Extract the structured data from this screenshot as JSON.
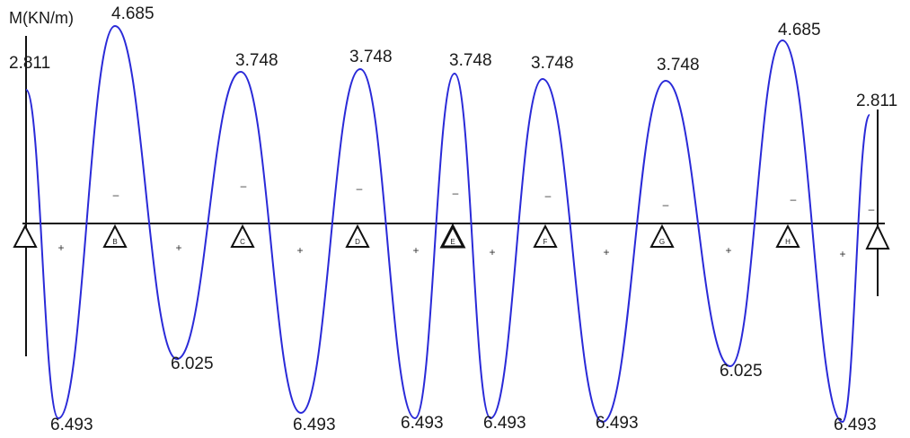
{
  "title": "M(KN/m)",
  "colors": {
    "curve": "#2a2ad8",
    "axis": "#111111"
  },
  "supports": [
    "",
    "B",
    "C",
    "D",
    "E",
    "F",
    "G",
    "H",
    ""
  ],
  "value_labels": {
    "top": [
      "2.811",
      "4.685",
      "3.748",
      "3.748",
      "3.748",
      "3.748",
      "3.748",
      "4.685",
      "2.811"
    ],
    "bottom": [
      "6.493",
      "6.025",
      "6.493",
      "6.493",
      "6.493",
      "6.493",
      "6.025",
      "6.493"
    ]
  },
  "signs": {
    "negative": [
      "–",
      "–",
      "–",
      "–",
      "–",
      "–",
      "–",
      "–"
    ],
    "positive": [
      "+",
      "+",
      "+",
      "+",
      "+",
      "+",
      "+",
      "+"
    ]
  }
}
